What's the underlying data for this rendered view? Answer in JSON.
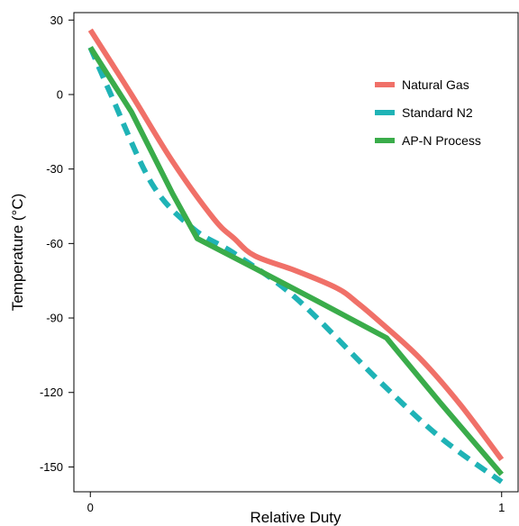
{
  "chart_data": {
    "type": "line",
    "xlabel": "Relative Duty",
    "ylabel": "Temperature (°C)",
    "xlim": [
      -0.04,
      1.04
    ],
    "ylim": [
      -160,
      33
    ],
    "xticks": [
      0,
      1
    ],
    "yticks": [
      30,
      0,
      -30,
      -60,
      -90,
      -120,
      -150
    ],
    "grid": false,
    "legend_position": "top-right",
    "series": [
      {
        "name": "Natural Gas",
        "color": "#f07068",
        "style": "solid",
        "points": [
          [
            0,
            26
          ],
          [
            0.1,
            0
          ],
          [
            0.2,
            -27
          ],
          [
            0.3,
            -50
          ],
          [
            0.35,
            -58
          ],
          [
            0.4,
            -65
          ],
          [
            0.5,
            -71
          ],
          [
            0.6,
            -78
          ],
          [
            0.65,
            -84
          ],
          [
            0.7,
            -91
          ],
          [
            0.8,
            -106
          ],
          [
            0.9,
            -125
          ],
          [
            1.0,
            -147
          ]
        ]
      },
      {
        "name": "Standard N2",
        "color": "#1fb3b6",
        "style": "dashed",
        "points": [
          [
            0,
            19
          ],
          [
            0.05,
            0
          ],
          [
            0.15,
            -36
          ],
          [
            0.25,
            -54
          ],
          [
            0.35,
            -64
          ],
          [
            0.5,
            -82
          ],
          [
            0.7,
            -115
          ],
          [
            0.85,
            -138
          ],
          [
            1.0,
            -156
          ]
        ]
      },
      {
        "name": "AP-N Process",
        "color": "#3aac4a",
        "style": "solid",
        "points": [
          [
            0,
            19
          ],
          [
            0.1,
            -7
          ],
          [
            0.2,
            -40
          ],
          [
            0.26,
            -58
          ],
          [
            0.4,
            -70
          ],
          [
            0.55,
            -83
          ],
          [
            0.72,
            -98
          ],
          [
            0.85,
            -124
          ],
          [
            1.0,
            -153
          ]
        ]
      }
    ]
  }
}
